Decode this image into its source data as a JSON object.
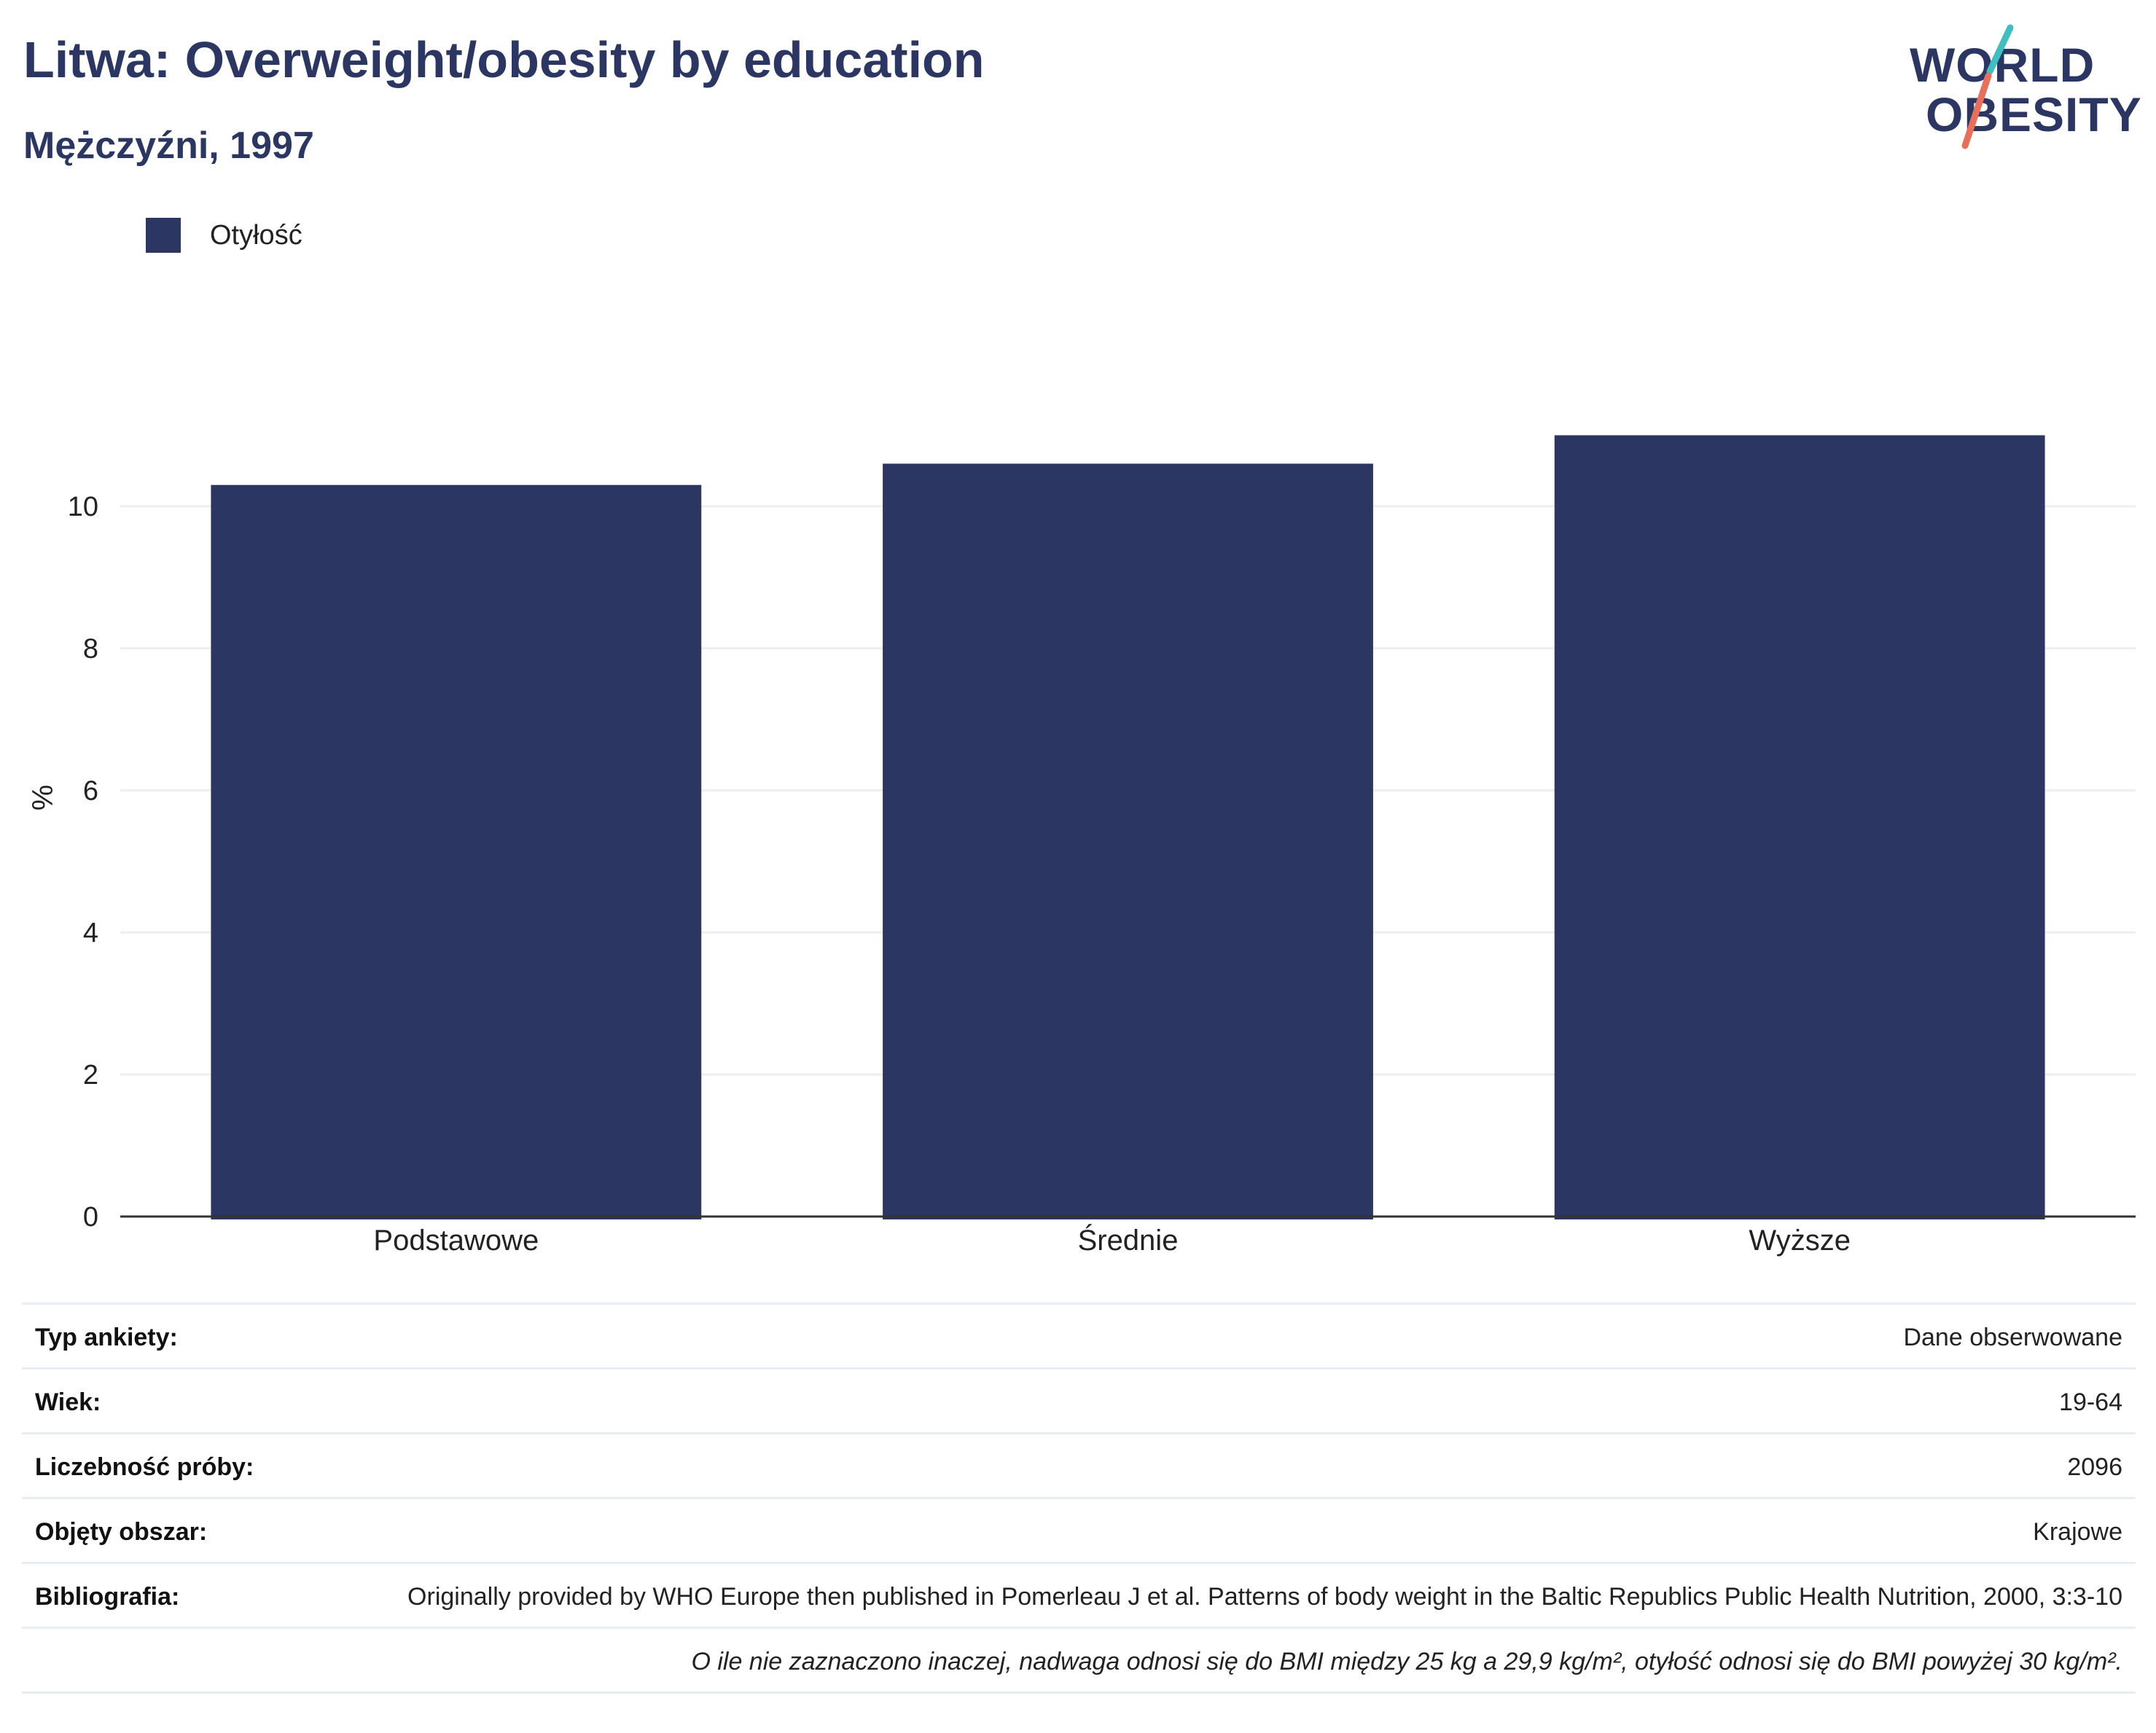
{
  "header": {
    "title": "Litwa: Overweight/obesity by education",
    "subtitle": "Mężczyźni, 1997"
  },
  "logo": {
    "line1": "WORLD",
    "line2": "OBESITY"
  },
  "colors": {
    "bar": "#2b3663",
    "logo_teal": "#3fbfbf",
    "logo_coral": "#e8705a",
    "grid": "#eeeeee",
    "axis": "#333333"
  },
  "chart_data": {
    "type": "bar",
    "categories": [
      "Podstawowe",
      "Średnie",
      "Wyższe"
    ],
    "series": [
      {
        "name": "Otyłość",
        "values": [
          10.3,
          10.6,
          11.0
        ]
      }
    ],
    "ylabel": "%",
    "ylim": [
      0,
      12
    ],
    "yticks": [
      0,
      2,
      4,
      6,
      8,
      10
    ],
    "grid": true,
    "legend": "top-left"
  },
  "info": {
    "rows": [
      {
        "label": "Typ ankiety:",
        "value": "Dane obserwowane"
      },
      {
        "label": "Wiek:",
        "value": "19-64"
      },
      {
        "label": "Liczebność próby:",
        "value": "2096"
      },
      {
        "label": "Objęty obszar:",
        "value": "Krajowe"
      },
      {
        "label": "Bibliografia:",
        "value": "Originally provided by WHO Europe then published in Pomerleau J et al. Patterns of body weight in the Baltic Republics Public Health Nutrition, 2000, 3:3-10"
      }
    ],
    "note": "O ile nie zaznaczono inaczej, nadwaga odnosi się do BMI między 25 kg a 29,9 kg/m², otyłość odnosi się do BMI powyżej 30 kg/m²."
  }
}
